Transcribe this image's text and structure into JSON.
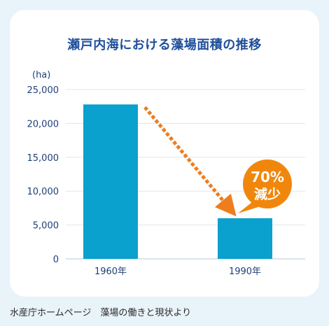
{
  "chart_data": {
    "type": "bar",
    "title": "瀬戸内海における藻場面積の推移",
    "ylabel": "(ha)",
    "categories": [
      "1960年",
      "1990年"
    ],
    "values": [
      22800,
      6000
    ],
    "ylim": [
      0,
      25000
    ],
    "yticks": [
      "0",
      "5,000",
      "10,000",
      "15,000",
      "20,000",
      "25,000"
    ],
    "grid": true,
    "annotation": {
      "percent": "70%",
      "text": "減少",
      "badge_color": "#f0870c",
      "arrow_color": "#ee7d1e"
    },
    "bar_color": "#0aa1cf",
    "title_color": "#1f4f9c",
    "source": "水産庁ホームページ　藻場の働きと現状より"
  }
}
